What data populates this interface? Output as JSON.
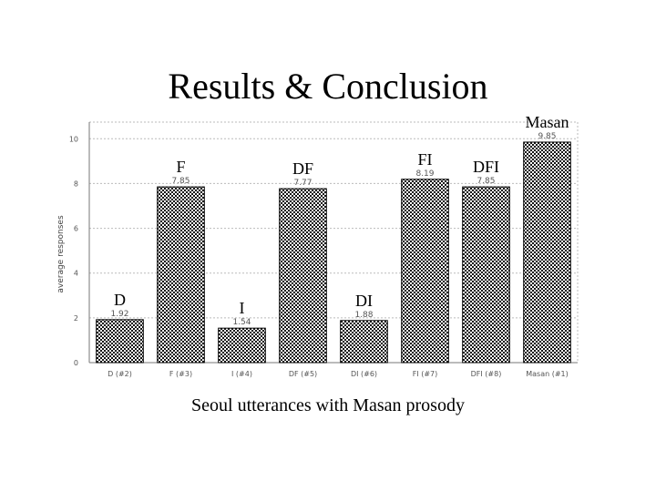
{
  "slide": {
    "title": "Results & Conclusion",
    "caption": "Seoul utterances with Masan prosody"
  },
  "chart_data": {
    "type": "bar",
    "categories": [
      "D (#2)",
      "F (#3)",
      "I (#4)",
      "DF (#5)",
      "DI (#6)",
      "FI (#7)",
      "DFI (#8)",
      "Masan (#1)"
    ],
    "values": [
      1.92,
      7.85,
      1.54,
      7.77,
      1.88,
      8.19,
      7.85,
      9.85
    ],
    "data_labels": [
      "1.92",
      "7.85",
      "1.54",
      "7.77",
      "1.88",
      "8.19",
      "7.85",
      "9.85"
    ],
    "bar_names": [
      "D",
      "F",
      "I",
      "DF",
      "DI",
      "FI",
      "DFI",
      "Masan"
    ],
    "ylabel": "average responses",
    "yticks": [
      0,
      2,
      4,
      6,
      8,
      10
    ],
    "ylim": [
      0,
      10.5
    ],
    "grid": true,
    "colors": {
      "bar_fill": "#9a9a9a",
      "bar_stroke": "#000000",
      "grid": "#bbbbbb",
      "text": "#000000"
    }
  }
}
